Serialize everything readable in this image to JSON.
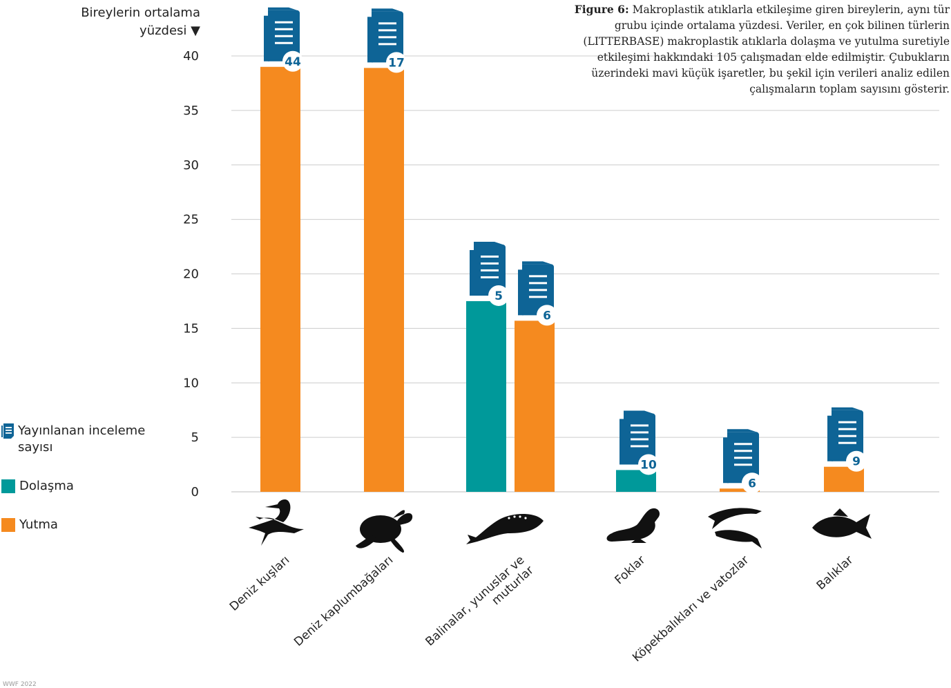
{
  "caption": {
    "figure_label": "Figure 6:",
    "text": "Makroplastik atıklarla etkileşime giren bireylerin, aynı tür grubu içinde ortalama yüzdesi. Veriler, en çok bilinen türlerin (LITTERBASE) makroplastik atıklarla dolaşma ve yutulma suretiyle etkileşimi hakkındaki 105 çalışmadan elde edilmiştir. Çubukların üzerindeki mavi küçük işaretler, bu şekil için verileri analiz edilen çalışmaların toplam sayısını gösterir."
  },
  "legend": {
    "publications": "Yayınlanan inceleme sayısı",
    "entanglement": "Dolaşma",
    "ingestion": "Yutma"
  },
  "footer": "WWF 2022",
  "colors": {
    "entanglement": "#00999a",
    "ingestion": "#f58a1f",
    "icon": "#0e6496",
    "grid": "#cccccc",
    "silhouette": "#111111"
  },
  "chart_data": {
    "type": "bar",
    "ylabel": "Bireylerin ortalama yüzdesi ▼",
    "ylim": [
      0,
      40
    ],
    "yticks": [
      0,
      5,
      10,
      15,
      20,
      25,
      30,
      35,
      40
    ],
    "grid": true,
    "categories": [
      "Deniz kuşları",
      "Deniz kaplumbağaları",
      "Balinalar, yunuslar ve muturlar",
      "Foklar",
      "Köpekbalıkları ve vatozlar",
      "Balıklar"
    ],
    "bars": [
      {
        "category": "Deniz kuşları",
        "series": "Yutma",
        "value": 39,
        "publications": 44
      },
      {
        "category": "Deniz kaplumbağaları",
        "series": "Yutma",
        "value": 38.9,
        "publications": 17
      },
      {
        "category": "Balinalar, yunuslar ve muturlar",
        "series": "Dolaşma",
        "value": 17.5,
        "publications": 5
      },
      {
        "category": "Balinalar, yunuslar ve muturlar",
        "series": "Yutma",
        "value": 15.7,
        "publications": 6
      },
      {
        "category": "Foklar",
        "series": "Dolaşma",
        "value": 2.0,
        "publications": 10
      },
      {
        "category": "Köpekbalıkları ve vatozlar",
        "series": "Yutma",
        "value": 0.3,
        "publications": 6
      },
      {
        "category": "Balıklar",
        "series": "Yutma",
        "value": 2.3,
        "publications": 9
      }
    ],
    "icons": [
      "pelican-icon",
      "sea-turtle-icon",
      "whale-icon",
      "seal-icon",
      "shark-icon",
      "fish-icon"
    ]
  }
}
